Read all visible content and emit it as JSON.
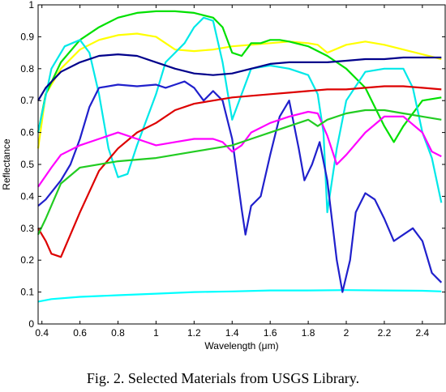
{
  "caption": "Fig. 2. Selected Materials from USGS Library.",
  "chart_data": {
    "type": "line",
    "title": "",
    "xlabel": "Wavelength (μm)",
    "ylabel": "Reflectance",
    "xlim": [
      0.38,
      2.52
    ],
    "ylim": [
      0,
      1
    ],
    "xticks": [
      0.4,
      0.6,
      0.8,
      1,
      1.2,
      1.4,
      1.6,
      1.8,
      2,
      2.2,
      2.4
    ],
    "xtick_labels": [
      "0.4",
      "0.6",
      "0.8",
      "1",
      "1.2",
      "1.4",
      "1.6",
      "1.8",
      "2",
      "2.2",
      "2.4"
    ],
    "yticks": [
      0,
      0.1,
      0.2,
      0.3,
      0.4,
      0.5,
      0.6,
      0.7,
      0.8,
      0.9,
      1
    ],
    "ytick_labels": [
      "0",
      "0.1",
      "0.2",
      "0.3",
      "0.4",
      "0.5",
      "0.6",
      "0.7",
      "0.8",
      "0.9",
      "1"
    ],
    "grid": false,
    "legend": "none",
    "series": [
      {
        "color": "#ffff00",
        "points": [
          [
            0.38,
            0.55
          ],
          [
            0.42,
            0.72
          ],
          [
            0.5,
            0.8
          ],
          [
            0.6,
            0.86
          ],
          [
            0.7,
            0.89
          ],
          [
            0.8,
            0.905
          ],
          [
            0.9,
            0.91
          ],
          [
            1.0,
            0.9
          ],
          [
            1.05,
            0.88
          ],
          [
            1.1,
            0.86
          ],
          [
            1.2,
            0.855
          ],
          [
            1.3,
            0.86
          ],
          [
            1.4,
            0.87
          ],
          [
            1.5,
            0.875
          ],
          [
            1.6,
            0.88
          ],
          [
            1.7,
            0.885
          ],
          [
            1.8,
            0.88
          ],
          [
            1.85,
            0.875
          ],
          [
            1.9,
            0.85
          ],
          [
            2.0,
            0.875
          ],
          [
            2.1,
            0.885
          ],
          [
            2.2,
            0.875
          ],
          [
            2.3,
            0.86
          ],
          [
            2.4,
            0.845
          ],
          [
            2.5,
            0.83
          ]
        ]
      },
      {
        "color": "#00e000",
        "points": [
          [
            0.38,
            0.6
          ],
          [
            0.42,
            0.72
          ],
          [
            0.5,
            0.82
          ],
          [
            0.6,
            0.89
          ],
          [
            0.7,
            0.93
          ],
          [
            0.8,
            0.96
          ],
          [
            0.9,
            0.975
          ],
          [
            1.0,
            0.98
          ],
          [
            1.1,
            0.98
          ],
          [
            1.2,
            0.975
          ],
          [
            1.3,
            0.96
          ],
          [
            1.35,
            0.93
          ],
          [
            1.4,
            0.85
          ],
          [
            1.45,
            0.84
          ],
          [
            1.5,
            0.88
          ],
          [
            1.55,
            0.88
          ],
          [
            1.6,
            0.89
          ],
          [
            1.65,
            0.89
          ],
          [
            1.7,
            0.885
          ],
          [
            1.8,
            0.87
          ],
          [
            1.9,
            0.84
          ],
          [
            2.0,
            0.8
          ],
          [
            2.1,
            0.74
          ],
          [
            2.2,
            0.62
          ],
          [
            2.25,
            0.57
          ],
          [
            2.3,
            0.62
          ],
          [
            2.4,
            0.7
          ],
          [
            2.5,
            0.71
          ]
        ]
      },
      {
        "color": "#00ffff",
        "points": [
          [
            0.38,
            0.07
          ],
          [
            0.45,
            0.078
          ],
          [
            0.6,
            0.085
          ],
          [
            0.8,
            0.09
          ],
          [
            1.0,
            0.095
          ],
          [
            1.2,
            0.1
          ],
          [
            1.4,
            0.102
          ],
          [
            1.6,
            0.105
          ],
          [
            1.8,
            0.105
          ],
          [
            2.0,
            0.106
          ],
          [
            2.2,
            0.105
          ],
          [
            2.4,
            0.104
          ],
          [
            2.5,
            0.102
          ]
        ]
      },
      {
        "color": "#00e8e8",
        "points": [
          [
            0.38,
            0.6
          ],
          [
            0.45,
            0.8
          ],
          [
            0.52,
            0.87
          ],
          [
            0.6,
            0.89
          ],
          [
            0.65,
            0.85
          ],
          [
            0.7,
            0.72
          ],
          [
            0.75,
            0.55
          ],
          [
            0.8,
            0.46
          ],
          [
            0.85,
            0.47
          ],
          [
            0.9,
            0.56
          ],
          [
            1.0,
            0.72
          ],
          [
            1.05,
            0.82
          ],
          [
            1.1,
            0.85
          ],
          [
            1.15,
            0.88
          ],
          [
            1.2,
            0.93
          ],
          [
            1.25,
            0.96
          ],
          [
            1.3,
            0.95
          ],
          [
            1.35,
            0.82
          ],
          [
            1.4,
            0.64
          ],
          [
            1.45,
            0.72
          ],
          [
            1.5,
            0.8
          ],
          [
            1.6,
            0.81
          ],
          [
            1.7,
            0.8
          ],
          [
            1.8,
            0.78
          ],
          [
            1.85,
            0.72
          ],
          [
            1.88,
            0.6
          ],
          [
            1.9,
            0.35
          ],
          [
            1.95,
            0.55
          ],
          [
            2.0,
            0.7
          ],
          [
            2.1,
            0.79
          ],
          [
            2.2,
            0.8
          ],
          [
            2.3,
            0.8
          ],
          [
            2.35,
            0.74
          ],
          [
            2.4,
            0.6
          ],
          [
            2.45,
            0.52
          ],
          [
            2.5,
            0.38
          ]
        ]
      },
      {
        "color": "#00008b",
        "points": [
          [
            0.38,
            0.7
          ],
          [
            0.42,
            0.74
          ],
          [
            0.5,
            0.79
          ],
          [
            0.6,
            0.82
          ],
          [
            0.7,
            0.84
          ],
          [
            0.8,
            0.845
          ],
          [
            0.9,
            0.84
          ],
          [
            1.0,
            0.82
          ],
          [
            1.1,
            0.8
          ],
          [
            1.2,
            0.785
          ],
          [
            1.3,
            0.78
          ],
          [
            1.4,
            0.785
          ],
          [
            1.5,
            0.8
          ],
          [
            1.6,
            0.815
          ],
          [
            1.7,
            0.82
          ],
          [
            1.8,
            0.82
          ],
          [
            1.9,
            0.82
          ],
          [
            2.0,
            0.825
          ],
          [
            2.1,
            0.83
          ],
          [
            2.2,
            0.83
          ],
          [
            2.3,
            0.835
          ],
          [
            2.4,
            0.835
          ],
          [
            2.5,
            0.835
          ]
        ]
      },
      {
        "color": "#2020cc",
        "points": [
          [
            0.38,
            0.37
          ],
          [
            0.42,
            0.39
          ],
          [
            0.5,
            0.45
          ],
          [
            0.55,
            0.5
          ],
          [
            0.6,
            0.58
          ],
          [
            0.65,
            0.68
          ],
          [
            0.7,
            0.74
          ],
          [
            0.8,
            0.75
          ],
          [
            0.9,
            0.745
          ],
          [
            1.0,
            0.75
          ],
          [
            1.05,
            0.74
          ],
          [
            1.1,
            0.75
          ],
          [
            1.15,
            0.76
          ],
          [
            1.2,
            0.74
          ],
          [
            1.25,
            0.7
          ],
          [
            1.3,
            0.73
          ],
          [
            1.35,
            0.7
          ],
          [
            1.4,
            0.58
          ],
          [
            1.45,
            0.36
          ],
          [
            1.47,
            0.28
          ],
          [
            1.5,
            0.37
          ],
          [
            1.55,
            0.4
          ],
          [
            1.6,
            0.53
          ],
          [
            1.65,
            0.65
          ],
          [
            1.7,
            0.7
          ],
          [
            1.75,
            0.55
          ],
          [
            1.78,
            0.45
          ],
          [
            1.82,
            0.5
          ],
          [
            1.86,
            0.57
          ],
          [
            1.9,
            0.45
          ],
          [
            1.95,
            0.2
          ],
          [
            1.98,
            0.1
          ],
          [
            2.02,
            0.2
          ],
          [
            2.05,
            0.35
          ],
          [
            2.1,
            0.41
          ],
          [
            2.15,
            0.39
          ],
          [
            2.2,
            0.33
          ],
          [
            2.25,
            0.26
          ],
          [
            2.3,
            0.28
          ],
          [
            2.35,
            0.3
          ],
          [
            2.4,
            0.26
          ],
          [
            2.45,
            0.16
          ],
          [
            2.5,
            0.13
          ]
        ]
      },
      {
        "color": "#dd0000",
        "points": [
          [
            0.38,
            0.3
          ],
          [
            0.42,
            0.26
          ],
          [
            0.45,
            0.22
          ],
          [
            0.5,
            0.21
          ],
          [
            0.6,
            0.35
          ],
          [
            0.7,
            0.48
          ],
          [
            0.8,
            0.55
          ],
          [
            0.9,
            0.6
          ],
          [
            1.0,
            0.63
          ],
          [
            1.1,
            0.67
          ],
          [
            1.2,
            0.69
          ],
          [
            1.3,
            0.7
          ],
          [
            1.4,
            0.71
          ],
          [
            1.5,
            0.715
          ],
          [
            1.6,
            0.72
          ],
          [
            1.7,
            0.725
          ],
          [
            1.8,
            0.73
          ],
          [
            1.9,
            0.735
          ],
          [
            2.0,
            0.735
          ],
          [
            2.1,
            0.74
          ],
          [
            2.2,
            0.745
          ],
          [
            2.3,
            0.745
          ],
          [
            2.4,
            0.74
          ],
          [
            2.5,
            0.735
          ]
        ]
      },
      {
        "color": "#ff00ff",
        "points": [
          [
            0.38,
            0.43
          ],
          [
            0.45,
            0.49
          ],
          [
            0.5,
            0.53
          ],
          [
            0.6,
            0.56
          ],
          [
            0.7,
            0.58
          ],
          [
            0.8,
            0.6
          ],
          [
            0.9,
            0.58
          ],
          [
            1.0,
            0.56
          ],
          [
            1.1,
            0.57
          ],
          [
            1.2,
            0.58
          ],
          [
            1.3,
            0.58
          ],
          [
            1.35,
            0.57
          ],
          [
            1.4,
            0.54
          ],
          [
            1.45,
            0.56
          ],
          [
            1.5,
            0.6
          ],
          [
            1.6,
            0.63
          ],
          [
            1.7,
            0.65
          ],
          [
            1.8,
            0.665
          ],
          [
            1.85,
            0.66
          ],
          [
            1.9,
            0.59
          ],
          [
            1.95,
            0.5
          ],
          [
            2.0,
            0.53
          ],
          [
            2.1,
            0.6
          ],
          [
            2.2,
            0.65
          ],
          [
            2.3,
            0.65
          ],
          [
            2.4,
            0.6
          ],
          [
            2.45,
            0.54
          ],
          [
            2.5,
            0.525
          ]
        ]
      },
      {
        "color": "#22cc22",
        "points": [
          [
            0.38,
            0.28
          ],
          [
            0.42,
            0.33
          ],
          [
            0.5,
            0.44
          ],
          [
            0.6,
            0.49
          ],
          [
            0.8,
            0.51
          ],
          [
            1.0,
            0.52
          ],
          [
            1.2,
            0.54
          ],
          [
            1.3,
            0.55
          ],
          [
            1.4,
            0.56
          ],
          [
            1.5,
            0.58
          ],
          [
            1.6,
            0.6
          ],
          [
            1.7,
            0.62
          ],
          [
            1.8,
            0.64
          ],
          [
            1.85,
            0.62
          ],
          [
            1.9,
            0.64
          ],
          [
            2.0,
            0.66
          ],
          [
            2.1,
            0.67
          ],
          [
            2.2,
            0.67
          ],
          [
            2.3,
            0.66
          ],
          [
            2.4,
            0.65
          ],
          [
            2.5,
            0.64
          ]
        ]
      }
    ]
  }
}
